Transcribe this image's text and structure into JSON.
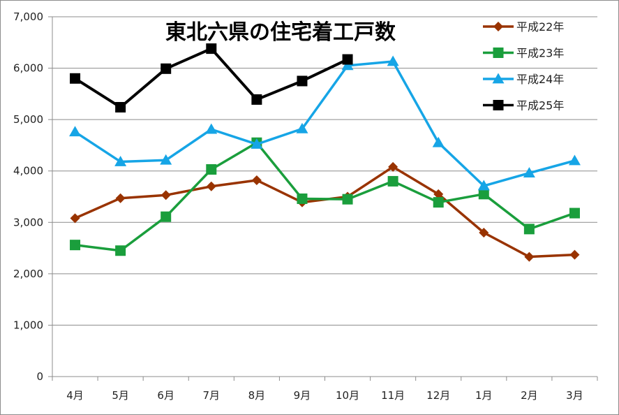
{
  "chart_data": {
    "type": "line",
    "title": "東北六県の住宅着工戸数",
    "xlabel": "",
    "ylabel": "",
    "categories": [
      "4月",
      "5月",
      "6月",
      "7月",
      "8月",
      "9月",
      "10月",
      "11月",
      "12月",
      "1月",
      "2月",
      "3月"
    ],
    "ylim": [
      0,
      7000
    ],
    "yticks": [
      "0",
      "1,000",
      "2,000",
      "3,000",
      "4,000",
      "5,000",
      "6,000",
      "7,000"
    ],
    "ytick_values": [
      0,
      1000,
      2000,
      3000,
      4000,
      5000,
      6000,
      7000
    ],
    "grid": true,
    "legend_position": "top-right",
    "series": [
      {
        "name": "平成22年",
        "color": "#993300",
        "marker": "diamond",
        "values": [
          3080,
          3470,
          3530,
          3700,
          3820,
          3390,
          3500,
          4080,
          3550,
          2800,
          2330,
          2370
        ]
      },
      {
        "name": "平成23年",
        "color": "#1a9e3c",
        "marker": "square",
        "values": [
          2560,
          2450,
          3110,
          4030,
          4550,
          3460,
          3450,
          3800,
          3390,
          3550,
          2870,
          3180
        ]
      },
      {
        "name": "平成24年",
        "color": "#16a5e6",
        "marker": "triangle",
        "values": [
          4760,
          4180,
          4210,
          4810,
          4520,
          4820,
          6050,
          6130,
          4550,
          3710,
          3960,
          4200
        ]
      },
      {
        "name": "平成25年",
        "color": "#000000",
        "marker": "square",
        "values": [
          5800,
          5240,
          5990,
          6380,
          5390,
          5750,
          6170,
          null,
          null,
          null,
          null,
          null
        ]
      }
    ]
  }
}
